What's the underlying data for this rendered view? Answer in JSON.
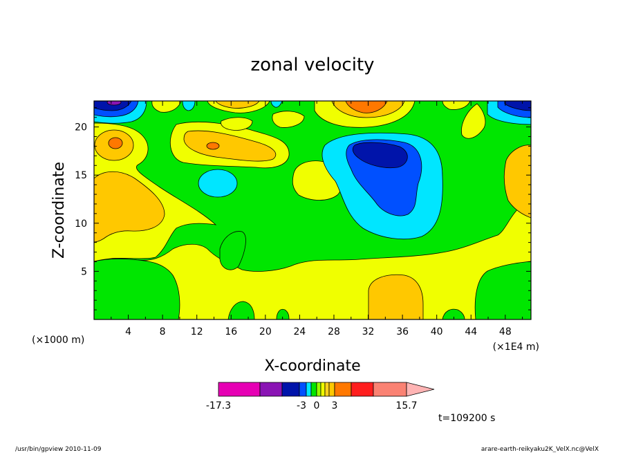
{
  "chart_data": {
    "type": "heatmap",
    "title": "zonal velocity",
    "xlabel": "X-coordinate",
    "ylabel": "Z-coordinate",
    "x_unit_left": "(×1000 m)",
    "x_unit_right": "(×1E4 m)",
    "x_ticks": [
      "4",
      "8",
      "12",
      "16",
      "20",
      "24",
      "28",
      "32",
      "36",
      "40",
      "44",
      "48"
    ],
    "y_ticks": [
      "5",
      "10",
      "15",
      "20"
    ],
    "xlim": [
      0,
      51
    ],
    "ylim": [
      0,
      22.7
    ],
    "colorbar": {
      "min_label": "-17.3",
      "max_label": "15.7",
      "tick_labels": [
        "-3",
        "0",
        "3"
      ],
      "colors": [
        "#e600b4",
        "#8a14b4",
        "#0014aa",
        "#0050ff",
        "#00e6ff",
        "#00e600",
        "#96ff00",
        "#f0ff00",
        "#ffd21e",
        "#ffc800",
        "#ff7800",
        "#ff1e1e",
        "#fa8273",
        "#ffb4b4"
      ]
    },
    "time_label": "t=109200 s",
    "footer_left": "/usr/bin/gpview   2010-11-09",
    "footer_right": "arare-earth-reikyaku2K_VelX.nc@VelX"
  }
}
